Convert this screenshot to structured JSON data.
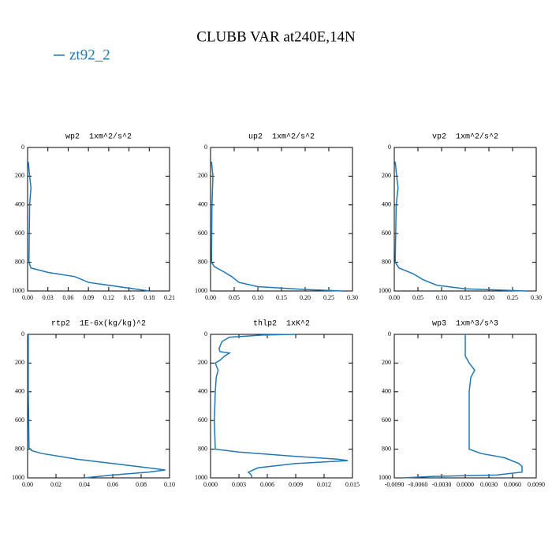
{
  "title": "CLUBB VAR at240E,14N",
  "legend": {
    "name": "zt92_2",
    "color": "#1f77b4"
  },
  "chart_data": [
    {
      "type": "line",
      "title": "wp2  1xm^2/s^2",
      "y_inverted": true,
      "xlim": [
        0,
        0.21
      ],
      "xticks": [
        {
          "value": 0,
          "label": "0.00"
        },
        {
          "value": 0.03,
          "label": "0.03"
        },
        {
          "value": 0.06,
          "label": "0.06"
        },
        {
          "value": 0.09,
          "label": "0.09"
        },
        {
          "value": 0.12,
          "label": "0.12"
        },
        {
          "value": 0.15,
          "label": "0.15"
        },
        {
          "value": 0.18,
          "label": "0.18"
        },
        {
          "value": 0.21,
          "label": "0.21"
        }
      ],
      "ylim": [
        0,
        1000
      ],
      "yticks": [
        0,
        200,
        400,
        600,
        800,
        1000
      ],
      "series": [
        {
          "color": "#1f77b4",
          "x": [
            0.001,
            0.003,
            0.005,
            0.003,
            0.002,
            0.005,
            0.03,
            0.07,
            0.09,
            0.15,
            0.18
          ],
          "y": [
            100,
            200,
            280,
            400,
            800,
            840,
            870,
            900,
            940,
            980,
            1000
          ]
        }
      ]
    },
    {
      "type": "line",
      "title": "up2  1xm^2/s^2",
      "y_inverted": true,
      "xlim": [
        0,
        0.3
      ],
      "xticks": [
        {
          "value": 0,
          "label": "0.00"
        },
        0.05,
        {
          "value": 0.1,
          "label": "0.10"
        },
        0.15,
        {
          "value": 0.2,
          "label": "0.20"
        },
        0.25,
        {
          "value": 0.3,
          "label": "0.30"
        }
      ],
      "ylim": [
        0,
        1000
      ],
      "yticks": [
        0,
        200,
        400,
        600,
        800,
        1000
      ],
      "series": [
        {
          "color": "#1f77b4",
          "x": [
            0.002,
            0.005,
            0.003,
            0.002,
            0.008,
            0.03,
            0.045,
            0.06,
            0.1,
            0.2,
            0.28
          ],
          "y": [
            100,
            200,
            400,
            800,
            830,
            870,
            900,
            940,
            970,
            990,
            1000
          ]
        }
      ]
    },
    {
      "type": "line",
      "title": "vp2  1xm^2/s^2",
      "y_inverted": true,
      "xlim": [
        0,
        0.3
      ],
      "xticks": [
        {
          "value": 0,
          "label": "0.00"
        },
        0.05,
        {
          "value": 0.1,
          "label": "0.10"
        },
        0.15,
        {
          "value": 0.2,
          "label": "0.20"
        },
        0.25,
        {
          "value": 0.3,
          "label": "0.30"
        }
      ],
      "ylim": [
        0,
        1000
      ],
      "yticks": [
        0,
        200,
        400,
        600,
        800,
        1000
      ],
      "series": [
        {
          "color": "#1f77b4",
          "x": [
            0.002,
            0.005,
            0.008,
            0.004,
            0.002,
            0.01,
            0.04,
            0.06,
            0.09,
            0.15,
            0.28
          ],
          "y": [
            100,
            200,
            280,
            400,
            800,
            840,
            880,
            920,
            960,
            985,
            1000
          ]
        }
      ]
    },
    {
      "type": "line",
      "title": "rtp2  1E-6x(kg/kg)^2",
      "y_inverted": true,
      "xlim": [
        0,
        0.1
      ],
      "xticks": [
        {
          "value": 0,
          "label": "0.00"
        },
        0.02,
        0.04,
        0.06,
        0.08,
        {
          "value": 0.1,
          "label": "0.10"
        }
      ],
      "ylim": [
        0,
        1000
      ],
      "yticks": [
        0,
        200,
        400,
        600,
        800,
        1000
      ],
      "series": [
        {
          "color": "#1f77b4",
          "x": [
            0.0005,
            0.0005,
            0.001,
            0.003,
            0.01,
            0.035,
            0.06,
            0.085,
            0.097,
            0.085,
            0.06,
            0.04
          ],
          "y": [
            0,
            400,
            790,
            810,
            830,
            870,
            900,
            930,
            945,
            960,
            980,
            1000
          ]
        }
      ]
    },
    {
      "type": "line",
      "title": "thlp2  1xK^2",
      "y_inverted": true,
      "xlim": [
        0,
        0.015
      ],
      "xticks": [
        {
          "value": 0,
          "label": "0.000"
        },
        0.003,
        0.006,
        0.009,
        0.012,
        0.015
      ],
      "ylim": [
        0,
        1000
      ],
      "yticks": [
        0,
        200,
        400,
        600,
        800,
        1000
      ],
      "series": [
        {
          "color": "#1f77b4",
          "x": [
            0.009,
            0.0055,
            0.002,
            0.0012,
            0.0009,
            0.001,
            0.002,
            0.0015,
            0.001,
            0.0005,
            0.0008,
            0.0006,
            0.0005,
            0.0004,
            0.0005,
            0.003,
            0.009,
            0.0135,
            0.0145,
            0.009,
            0.005,
            0.004,
            0.0043,
            0.0044
          ],
          "y": [
            0,
            5,
            20,
            50,
            100,
            120,
            130,
            150,
            180,
            200,
            250,
            300,
            400,
            600,
            800,
            820,
            850,
            870,
            880,
            900,
            930,
            960,
            980,
            1000
          ]
        }
      ]
    },
    {
      "type": "line",
      "title": "wp3  1xm^3/s^3",
      "y_inverted": true,
      "xlim": [
        -0.009,
        0.009
      ],
      "xticks": [
        {
          "value": -0.009,
          "label": "-0.0090"
        },
        {
          "value": -0.006,
          "label": "-0.0060"
        },
        {
          "value": -0.003,
          "label": "-0.0030"
        },
        {
          "value": 0,
          "label": "0.0000"
        },
        {
          "value": 0.003,
          "label": "0.0030"
        },
        {
          "value": 0.006,
          "label": "0.0060"
        },
        {
          "value": 0.009,
          "label": "0.0090"
        }
      ],
      "ylim": [
        0,
        1000
      ],
      "yticks": [
        0,
        200,
        400,
        600,
        800,
        1000
      ],
      "series": [
        {
          "color": "#1f77b4",
          "x": [
            0,
            0,
            0.0005,
            0.0012,
            0.0007,
            0.0005,
            0.0005,
            0.002,
            0.005,
            0.0068,
            0.0072,
            0.0072,
            0.004,
            -0.004,
            -0.008
          ],
          "y": [
            0,
            150,
            200,
            250,
            300,
            400,
            800,
            830,
            860,
            900,
            920,
            960,
            980,
            990,
            1000
          ]
        }
      ]
    }
  ]
}
